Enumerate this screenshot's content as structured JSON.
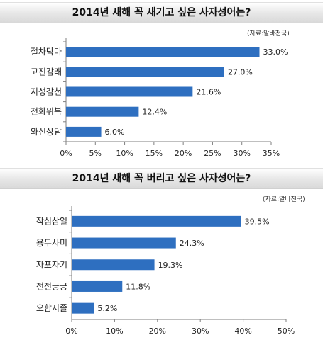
{
  "chart_data": [
    {
      "type": "bar",
      "orientation": "horizontal",
      "title": "2014년 새해 꼭 새기고 싶은 사자성어는?",
      "source": "(자료:알바천국)",
      "categories": [
        "절차탁마",
        "고진감래",
        "지성감천",
        "전화위복",
        "와신상담"
      ],
      "values": [
        33.0,
        27.0,
        21.6,
        12.4,
        6.0
      ],
      "value_labels": [
        "33.0%",
        "27.0%",
        "21.6%",
        "12.4%",
        "6.0%"
      ],
      "xlim": [
        0,
        35
      ],
      "x_ticks": [
        0,
        5,
        10,
        15,
        20,
        25,
        30,
        35
      ],
      "x_tick_labels": [
        "0%",
        "5%",
        "10%",
        "15%",
        "20%",
        "25%",
        "30%",
        "35%"
      ],
      "grid": false,
      "bar_color": "#2e6fc0"
    },
    {
      "type": "bar",
      "orientation": "horizontal",
      "title": "2014년 새해 꼭 버리고 싶은 사자성어는?",
      "source": "(자료:알바천국)",
      "categories": [
        "작심삼일",
        "용두사미",
        "자포자기",
        "전전긍긍",
        "오합지졸"
      ],
      "values": [
        39.5,
        24.3,
        19.3,
        11.8,
        5.2
      ],
      "value_labels": [
        "39.5%",
        "24.3%",
        "19.3%",
        "11.8%",
        "5.2%"
      ],
      "xlim": [
        0,
        50
      ],
      "x_ticks": [
        0,
        10,
        20,
        30,
        40,
        50
      ],
      "x_tick_labels": [
        "0%",
        "10%",
        "20%",
        "30%",
        "40%",
        "50%"
      ],
      "grid": false,
      "bar_color": "#2e6fc0"
    }
  ]
}
